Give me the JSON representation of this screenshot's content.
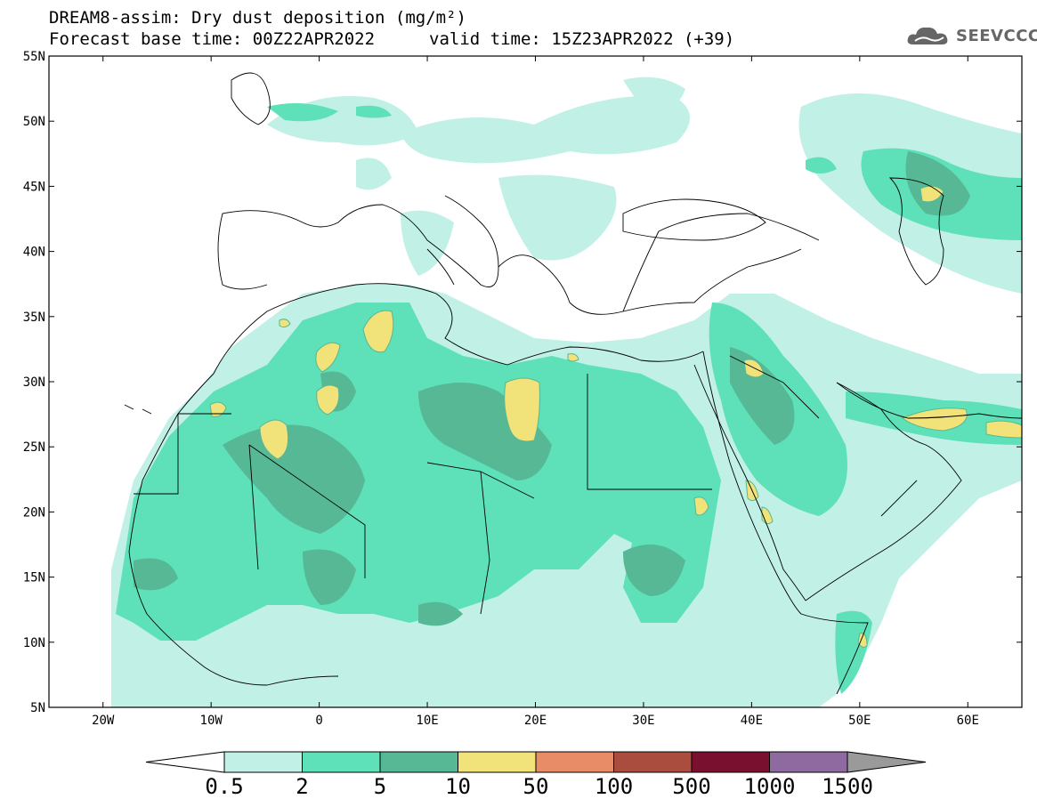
{
  "header": {
    "title": "DREAM8-assim: Dry dust deposition (mg/m²)",
    "base_time": "Forecast base time: 00Z22APR2022",
    "valid_time": "valid time: 15Z23APR2022 (+39)",
    "logo_text": "SEEVCCC"
  },
  "map": {
    "lat_ticks": [
      "55N",
      "50N",
      "45N",
      "40N",
      "35N",
      "30N",
      "25N",
      "20N",
      "15N",
      "10N",
      "5N"
    ],
    "lon_ticks": [
      "20W",
      "10W",
      "0",
      "10E",
      "20E",
      "30E",
      "40E",
      "50E",
      "60E"
    ],
    "extent": {
      "lon_min": -25,
      "lon_max": 65,
      "lat_min": 5,
      "lat_max": 55
    }
  },
  "legend": {
    "labels": [
      "0.5",
      "2",
      "5",
      "10",
      "50",
      "100",
      "500",
      "1000",
      "1500"
    ],
    "colors": [
      "#c1f0e6",
      "#5ee0b9",
      "#56b894",
      "#f1e27a",
      "#e88c68",
      "#ab4d3e",
      "#7a1030",
      "#8f6aa0",
      "#9a9a9a"
    ],
    "under_color": "#ffffff"
  }
}
